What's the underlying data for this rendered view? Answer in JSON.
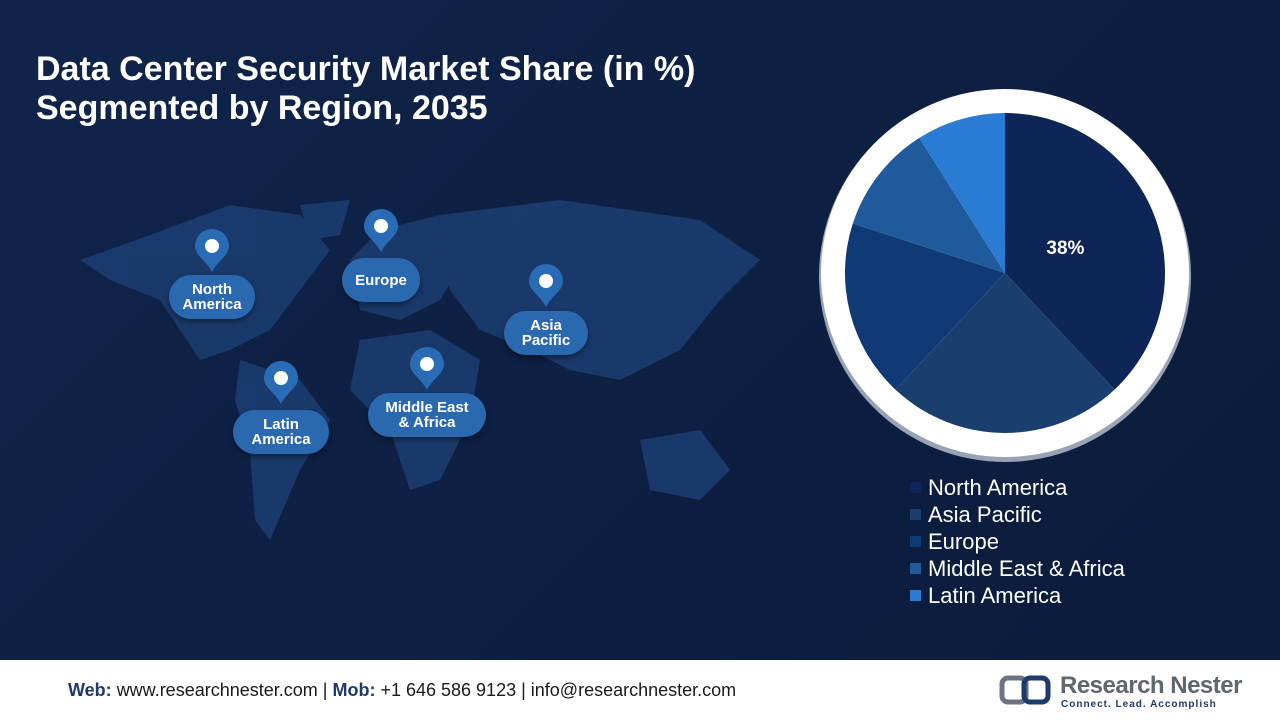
{
  "chart_data": {
    "type": "pie",
    "title": "Data Center Security Market Share (in %)",
    "subtitle": "Segmented by Region, 2035",
    "categories": [
      "North America",
      "Asia Pacific",
      "Europe",
      "Middle East & Africa",
      "Latin America"
    ],
    "values": [
      38,
      24,
      18,
      11,
      9
    ],
    "value_labels": [
      "38%",
      null,
      null,
      null,
      null
    ],
    "colors": [
      "#0d2657",
      "#1a3f6e",
      "#0f3a75",
      "#1f5a9c",
      "#2a7bd4"
    ]
  },
  "footer": {
    "web_label": "Web:",
    "web": "www.researchnester.com",
    "mob_label": "Mob:",
    "mob": "+1 646 586 9123",
    "email": "info@researchnester.com",
    "logo_name": "Research Nester",
    "logo_tagline": "Connect. Lead. Accomplish"
  }
}
